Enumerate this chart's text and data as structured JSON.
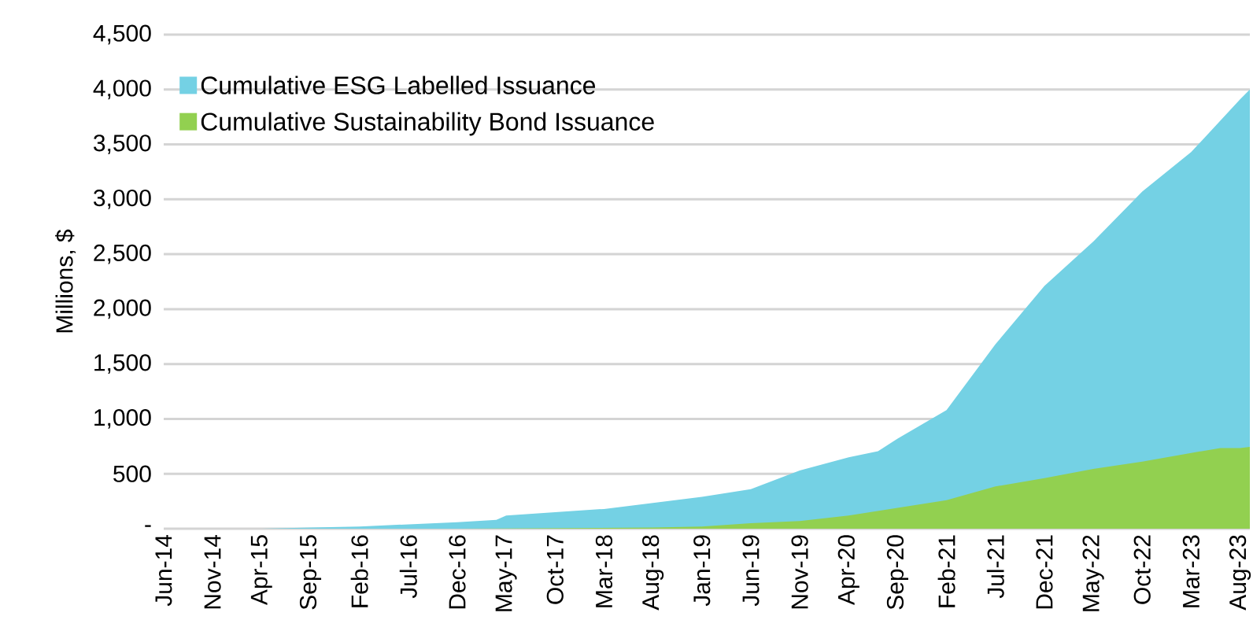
{
  "chart_data": {
    "type": "area",
    "ylabel": "Millions, $",
    "xlim": [
      "2014-06",
      "2023-09"
    ],
    "ylim": [
      0,
      4500
    ],
    "yticks": [
      {
        "value": 0,
        "label": "-"
      },
      {
        "value": 500,
        "label": "500"
      },
      {
        "value": 1000,
        "label": "1,000"
      },
      {
        "value": 1500,
        "label": "1,500"
      },
      {
        "value": 2000,
        "label": "2,000"
      },
      {
        "value": 2500,
        "label": "2,500"
      },
      {
        "value": 3000,
        "label": "3,000"
      },
      {
        "value": 3500,
        "label": "3,500"
      },
      {
        "value": 4000,
        "label": "4,000"
      },
      {
        "value": 4500,
        "label": "4,500"
      }
    ],
    "xticks": [
      {
        "value": "2014-06",
        "label": "Jun-14"
      },
      {
        "value": "2014-11",
        "label": "Nov-14"
      },
      {
        "value": "2015-04",
        "label": "Apr-15"
      },
      {
        "value": "2015-09",
        "label": "Sep-15"
      },
      {
        "value": "2016-02",
        "label": "Feb-16"
      },
      {
        "value": "2016-07",
        "label": "Jul-16"
      },
      {
        "value": "2016-12",
        "label": "Dec-16"
      },
      {
        "value": "2017-05",
        "label": "May-17"
      },
      {
        "value": "2017-10",
        "label": "Oct-17"
      },
      {
        "value": "2018-03",
        "label": "Mar-18"
      },
      {
        "value": "2018-08",
        "label": "Aug-18"
      },
      {
        "value": "2019-01",
        "label": "Jan-19"
      },
      {
        "value": "2019-06",
        "label": "Jun-19"
      },
      {
        "value": "2019-11",
        "label": "Nov-19"
      },
      {
        "value": "2020-04",
        "label": "Apr-20"
      },
      {
        "value": "2020-09",
        "label": "Sep-20"
      },
      {
        "value": "2021-02",
        "label": "Feb-21"
      },
      {
        "value": "2021-07",
        "label": "Jul-21"
      },
      {
        "value": "2021-12",
        "label": "Dec-21"
      },
      {
        "value": "2022-05",
        "label": "May-22"
      },
      {
        "value": "2022-10",
        "label": "Oct-22"
      },
      {
        "value": "2023-03",
        "label": "Mar-23"
      },
      {
        "value": "2023-08",
        "label": "Aug-23"
      }
    ],
    "grid": "y",
    "legend": "top left",
    "series": [
      {
        "name": "Cumulative ESG Labelled Issuance",
        "color": "#74d1e4",
        "x": [
          "2014-06",
          "2014-11",
          "2015-04",
          "2015-09",
          "2016-02",
          "2016-07",
          "2016-12",
          "2017-04",
          "2017-05",
          "2017-10",
          "2018-03",
          "2018-08",
          "2019-01",
          "2019-06",
          "2019-11",
          "2020-04",
          "2020-07",
          "2020-09",
          "2021-02",
          "2021-03",
          "2021-07",
          "2021-12",
          "2022-05",
          "2022-10",
          "2023-03",
          "2023-08",
          "2023-09"
        ],
        "values": [
          0,
          0,
          0,
          10,
          20,
          40,
          60,
          80,
          120,
          150,
          180,
          235,
          290,
          360,
          530,
          650,
          705,
          820,
          1080,
          1200,
          1680,
          2210,
          2615,
          3070,
          3430,
          3910,
          4000
        ]
      },
      {
        "name": "Cumulative Sustainability Bond Issuance",
        "color": "#92d050",
        "x": [
          "2014-06",
          "2016-12",
          "2018-08",
          "2019-01",
          "2019-06",
          "2019-11",
          "2020-04",
          "2020-09",
          "2021-02",
          "2021-07",
          "2021-12",
          "2022-05",
          "2022-10",
          "2023-03",
          "2023-06",
          "2023-08",
          "2023-09"
        ],
        "values": [
          0,
          0,
          10,
          20,
          50,
          70,
          120,
          190,
          260,
          385,
          460,
          545,
          610,
          690,
          735,
          735,
          745
        ]
      }
    ]
  }
}
